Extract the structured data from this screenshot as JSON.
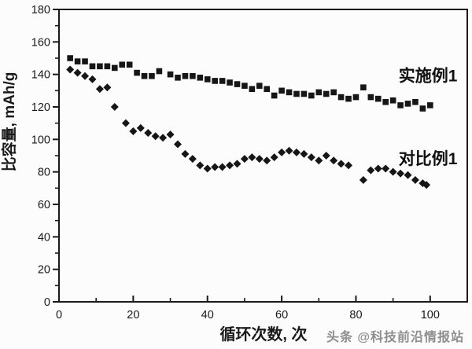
{
  "chart_data": {
    "type": "scatter",
    "title": "",
    "xlabel": "循环次数, 次",
    "ylabel": "比容量, mAh/g",
    "xlim": [
      0,
      110
    ],
    "ylim": [
      0,
      180
    ],
    "x_major_ticks": [
      0,
      20,
      40,
      60,
      80,
      100
    ],
    "x_minor_ticks": [
      10,
      30,
      50,
      70,
      90
    ],
    "y_major_ticks": [
      0,
      20,
      40,
      60,
      80,
      100,
      120,
      140,
      160,
      180
    ],
    "y_minor_ticks": [
      10,
      30,
      50,
      70,
      90,
      110,
      130,
      150,
      170
    ],
    "grid": false,
    "legend_position": "inline annotations at right of each curve",
    "series": [
      {
        "name": "实施例1",
        "marker": "square",
        "color": "#161616",
        "points": [
          [
            3,
            150
          ],
          [
            5,
            148
          ],
          [
            7,
            148
          ],
          [
            9,
            145
          ],
          [
            11,
            145
          ],
          [
            13,
            145
          ],
          [
            15,
            144
          ],
          [
            17,
            146
          ],
          [
            19,
            146
          ],
          [
            21,
            141
          ],
          [
            23,
            139
          ],
          [
            25,
            139
          ],
          [
            27,
            142
          ],
          [
            30,
            140
          ],
          [
            32,
            138
          ],
          [
            34,
            139
          ],
          [
            36,
            139
          ],
          [
            38,
            138
          ],
          [
            40,
            137
          ],
          [
            42,
            136
          ],
          [
            44,
            136
          ],
          [
            46,
            135
          ],
          [
            48,
            134
          ],
          [
            50,
            133
          ],
          [
            52,
            131
          ],
          [
            54,
            133
          ],
          [
            56,
            131
          ],
          [
            58,
            127
          ],
          [
            60,
            130
          ],
          [
            62,
            129
          ],
          [
            64,
            128
          ],
          [
            66,
            128
          ],
          [
            68,
            127
          ],
          [
            70,
            129
          ],
          [
            72,
            128
          ],
          [
            74,
            129
          ],
          [
            76,
            126
          ],
          [
            78,
            125
          ],
          [
            80,
            126
          ],
          [
            82,
            132
          ],
          [
            84,
            126
          ],
          [
            86,
            125
          ],
          [
            88,
            123
          ],
          [
            90,
            124
          ],
          [
            92,
            121
          ],
          [
            94,
            122
          ],
          [
            96,
            123
          ],
          [
            98,
            119
          ],
          [
            100,
            121
          ]
        ]
      },
      {
        "name": "对比例1",
        "marker": "diamond",
        "color": "#161616",
        "points": [
          [
            3,
            143
          ],
          [
            5,
            141
          ],
          [
            7,
            139
          ],
          [
            9,
            137
          ],
          [
            11,
            131
          ],
          [
            13,
            132
          ],
          [
            15,
            120
          ],
          [
            18,
            110
          ],
          [
            20,
            105
          ],
          [
            22,
            107
          ],
          [
            24,
            104
          ],
          [
            26,
            102
          ],
          [
            28,
            101
          ],
          [
            30,
            103
          ],
          [
            32,
            97
          ],
          [
            34,
            91
          ],
          [
            36,
            88
          ],
          [
            38,
            84
          ],
          [
            40,
            82
          ],
          [
            42,
            83
          ],
          [
            44,
            83
          ],
          [
            46,
            84
          ],
          [
            48,
            85
          ],
          [
            50,
            88
          ],
          [
            52,
            89
          ],
          [
            54,
            88
          ],
          [
            56,
            87
          ],
          [
            58,
            89
          ],
          [
            60,
            92
          ],
          [
            62,
            93
          ],
          [
            64,
            92
          ],
          [
            66,
            91
          ],
          [
            68,
            89
          ],
          [
            70,
            87
          ],
          [
            72,
            90
          ],
          [
            74,
            87
          ],
          [
            76,
            85
          ],
          [
            78,
            84
          ],
          [
            82,
            75
          ],
          [
            84,
            81
          ],
          [
            86,
            82
          ],
          [
            88,
            82
          ],
          [
            90,
            80
          ],
          [
            92,
            79
          ],
          [
            94,
            78
          ],
          [
            96,
            75
          ],
          [
            98,
            73
          ],
          [
            99,
            72
          ]
        ]
      }
    ],
    "annotations": [
      {
        "text": "实施例1",
        "x": 91.5,
        "y": 139
      },
      {
        "text": "对比例1",
        "x": 91.5,
        "y": 88
      }
    ]
  },
  "watermark": {
    "text": "头条 @科技前沿情报站"
  },
  "colors": {
    "axis": "#1a1a1a",
    "marker": "#161616",
    "tick_label": "#1a1a1a",
    "annotation": "#111111",
    "background": "#fcfcfc"
  }
}
